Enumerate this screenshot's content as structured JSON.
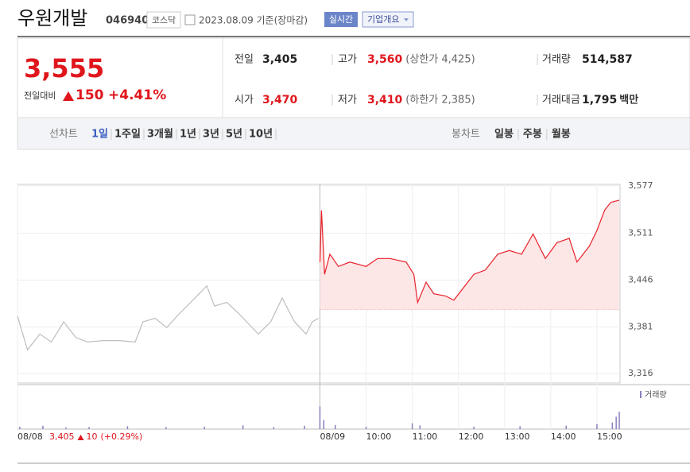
{
  "header": {
    "name": "우원개발",
    "code": "046940",
    "market": "코스닥",
    "date": "2023.08.09 기준(장마감)",
    "realtime": "실시간",
    "company": "기업개요"
  },
  "quote": {
    "price": "3,555",
    "change_label": "전일대비",
    "change": "150",
    "change_rate": "+4.41%",
    "items": [
      {
        "label": "전일",
        "value": "3,405"
      },
      {
        "label": "고가",
        "value": "3,560",
        "extra": "(상한가 4,425)"
      },
      {
        "label": "거래량",
        "value": "514,587"
      },
      {
        "label": "시가",
        "value": "3,470"
      },
      {
        "label": "저가",
        "value": "3,410",
        "extra": "(하한가 2,385)"
      },
      {
        "label": "거래대금",
        "value": "1,795",
        "unit": "백만"
      }
    ]
  },
  "tabs": {
    "line_label": "선차트",
    "line": [
      "1일",
      "1주일",
      "3개월",
      "1년",
      "3년",
      "5년",
      "10년"
    ],
    "selected_index": 0,
    "candle_label": "봉차트",
    "candle": [
      "일봉",
      "주봉",
      "월봉"
    ]
  },
  "chart_data": {
    "type": "line",
    "xlim": [
      -393,
      390
    ],
    "ylim": [
      3303,
      3579
    ],
    "xticks": [
      {
        "value": -393,
        "label": "08/08"
      },
      {
        "value": 0,
        "label": "08/09"
      },
      {
        "value": 60,
        "label": "10:00"
      },
      {
        "value": 120,
        "label": "11:00"
      },
      {
        "value": 180,
        "label": "12:00"
      },
      {
        "value": 240,
        "label": "13:00"
      },
      {
        "value": 300,
        "label": "14:00"
      },
      {
        "value": 360,
        "label": "15:00"
      }
    ],
    "yticks": [
      {
        "value": 3577,
        "label": "3,577"
      },
      {
        "value": 3511,
        "label": "3,511"
      },
      {
        "value": 3446,
        "label": "3,446"
      },
      {
        "value": 3381,
        "label": "3,381"
      },
      {
        "value": 3316,
        "label": "3,316"
      }
    ],
    "grid": true,
    "baseline": 3405,
    "fill_color": "#fde6e6",
    "prev_day": {
      "close": "3,405",
      "change": "10",
      "rate": "(+0.29%)"
    },
    "series": [
      {
        "color": "#bdbdbd",
        "x": [
          -393,
          -380,
          -364,
          -349,
          -333,
          -317,
          -302,
          -281,
          -261,
          -240,
          -230,
          -214,
          -199,
          -183,
          -168,
          -157,
          -147,
          -137,
          -121,
          -105,
          -90,
          -80,
          -64,
          -49,
          -33,
          -18,
          -10,
          -2
        ],
        "values": [
          3396,
          3349,
          3371,
          3360,
          3388,
          3366,
          3360,
          3362,
          3362,
          3360,
          3388,
          3393,
          3380,
          3399,
          3415,
          3427,
          3438,
          3410,
          3415,
          3399,
          3382,
          3371,
          3388,
          3421,
          3388,
          3371,
          3388,
          3393
        ]
      },
      {
        "color": "#e8202a",
        "x": [
          0,
          2,
          6,
          13,
          24,
          39,
          60,
          75,
          91,
          112,
          122,
          127,
          138,
          148,
          163,
          174,
          184,
          200,
          215,
          231,
          246,
          262,
          277,
          293,
          308,
          324,
          334,
          350,
          360,
          370,
          378,
          389
        ],
        "values": [
          3471,
          3543,
          3454,
          3482,
          3465,
          3471,
          3465,
          3476,
          3476,
          3471,
          3454,
          3415,
          3443,
          3427,
          3424,
          3418,
          3432,
          3454,
          3460,
          3482,
          3487,
          3482,
          3510,
          3476,
          3498,
          3504,
          3471,
          3493,
          3515,
          3543,
          3554,
          3557
        ]
      }
    ],
    "volume": {
      "name": "거래량",
      "color": "#8a7fc0",
      "ylim": [
        0,
        100
      ],
      "x": [
        -390,
        -360,
        -330,
        -300,
        -250,
        -200,
        -150,
        -100,
        -60,
        -20,
        0,
        5,
        20,
        60,
        120,
        130,
        200,
        260,
        320,
        360,
        380,
        385,
        389
      ],
      "values": [
        6,
        8,
        4,
        5,
        7,
        5,
        6,
        9,
        5,
        8,
        55,
        22,
        10,
        6,
        14,
        9,
        6,
        7,
        8,
        12,
        16,
        30,
        42
      ]
    }
  }
}
